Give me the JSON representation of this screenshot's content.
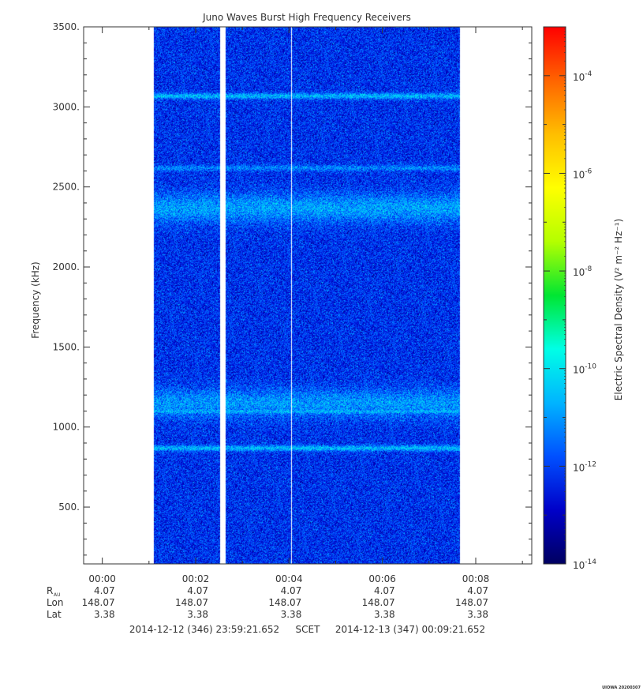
{
  "chart_data": {
    "type": "heatmap",
    "title": "Juno Waves Burst High Frequency Receivers",
    "ylabel": "Frequency (kHz)",
    "ylim": [
      145,
      3500
    ],
    "y_ticks": [
      500,
      1000,
      1500,
      2000,
      2500,
      3000,
      3500
    ],
    "y_tick_labels": [
      "500.",
      "1000.",
      "1500.",
      "2000.",
      "2500.",
      "3000.",
      "3500."
    ],
    "xlim_minutes": [
      -0.4,
      9.2
    ],
    "x_ticks": [
      "00:00",
      "00:02",
      "00:04",
      "00:06",
      "00:08"
    ],
    "x_tick_minutes": [
      0,
      2,
      4,
      6,
      8
    ],
    "ephemeris": {
      "rows": [
        {
          "label": "R",
          "sub": "AU",
          "values": [
            "4.07",
            "4.07",
            "4.07",
            "4.07",
            "4.07"
          ]
        },
        {
          "label": "Lon",
          "values": [
            "148.07",
            "148.07",
            "148.07",
            "148.07",
            "148.07"
          ]
        },
        {
          "label": "Lat",
          "values": [
            "3.38",
            "3.38",
            "3.38",
            "3.38",
            "3.38"
          ]
        }
      ]
    },
    "time_range": {
      "start": "2014-12-12 (346) 23:59:21.652",
      "label": "SCET",
      "end": "2014-12-13 (347) 00:09:21.652"
    },
    "data_coverage_minutes": [
      1.1,
      7.65
    ],
    "data_gaps_minutes": [
      [
        2.52,
        2.64
      ]
    ],
    "colorbar": {
      "label": "Electric Spectral Density (V² m⁻² Hz⁻¹)",
      "log_range": [
        -14,
        -3
      ],
      "tick_exponents": [
        -14,
        -12,
        -10,
        -8,
        -6,
        -4
      ],
      "tick_labels": [
        "10",
        "10",
        "10",
        "10",
        "10",
        "10"
      ],
      "tick_label_exponents": [
        "-14",
        "-12",
        "-10",
        "-8",
        "-6",
        "-4"
      ],
      "colors": [
        "#000060",
        "#0000c8",
        "#0050ff",
        "#00b4ff",
        "#00ffe6",
        "#00e632",
        "#b4ff00",
        "#ffff00",
        "#ffbe00",
        "#ff6400",
        "#ff0000"
      ]
    },
    "spectral_bands_kHz": [
      {
        "center": 3070,
        "log_level": -10.6
      },
      {
        "center": 2620,
        "log_level": -11.2
      },
      {
        "center": 2370,
        "log_level": -10.9
      },
      {
        "center": 1150,
        "log_level": -11.0
      },
      {
        "center": 1100,
        "log_level": -10.7
      },
      {
        "center": 870,
        "log_level": -10.6
      }
    ],
    "background_log_level": -12.2
  },
  "footer": {
    "credit": "UIOWA 20200307"
  }
}
